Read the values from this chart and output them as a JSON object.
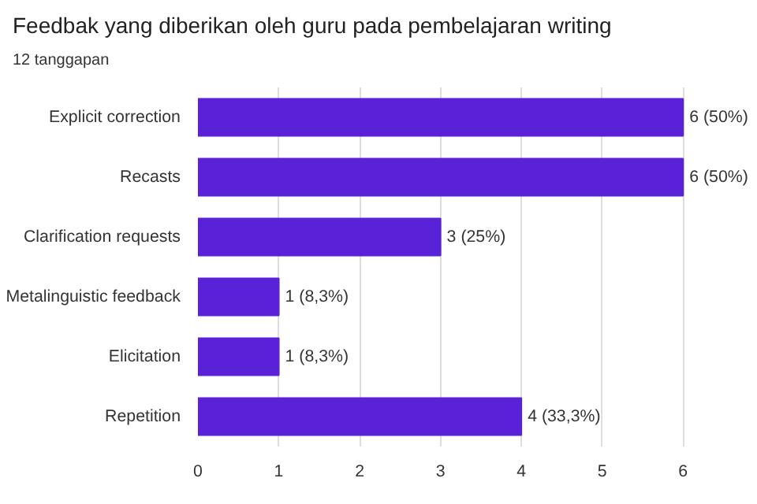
{
  "chart_data": {
    "type": "bar",
    "orientation": "horizontal",
    "title": "Feedbak yang diberikan oleh guru pada pembelajaran writing",
    "subtitle": "12 tanggapan",
    "categories": [
      "Explicit correction",
      "Recasts",
      "Clarification requests",
      "Metalinguistic feedback",
      "Elicitation",
      "Repetition"
    ],
    "values": [
      6,
      6,
      3,
      1,
      1,
      4
    ],
    "value_labels": [
      "6 (50%)",
      "6 (50%)",
      "3 (25%)",
      "1 (8,3%)",
      "1 (8,3%)",
      "4 (33,3%)"
    ],
    "color": "#5a22d8",
    "xlim": [
      0,
      6
    ],
    "xticks": [
      0,
      1,
      2,
      3,
      4,
      5,
      6
    ],
    "grid": "x"
  }
}
